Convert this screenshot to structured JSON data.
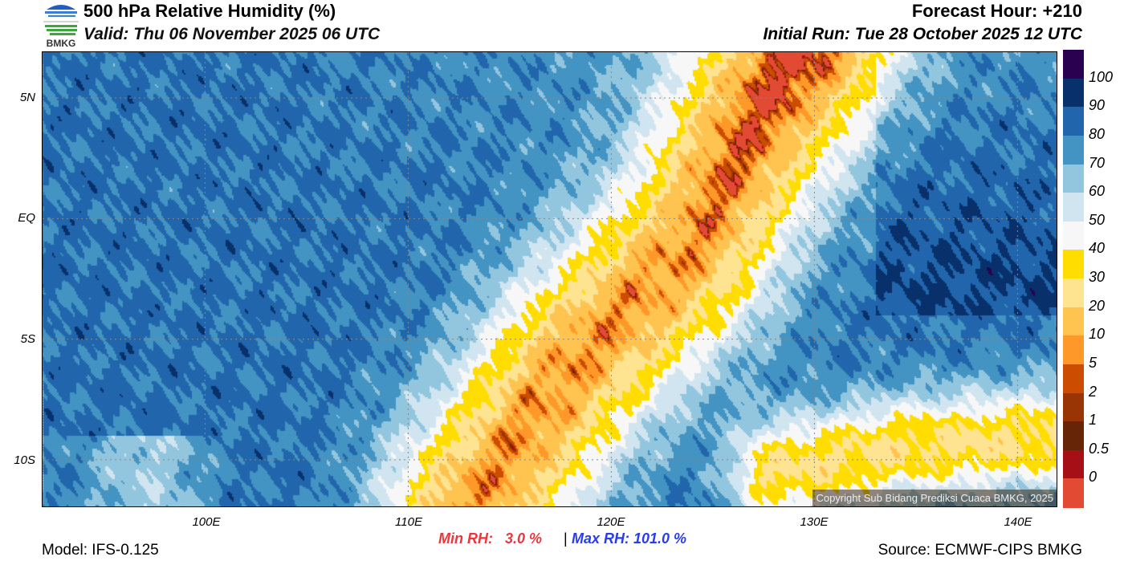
{
  "header": {
    "title": "500 hPa Relative Humidity (%)",
    "valid": "Valid: Thu 06 November 2025 06 UTC",
    "forecast_hour": "Forecast Hour: +210",
    "initial_run": "Initial Run: Tue 28 October 2025 12 UTC",
    "logo_text": "BMKG"
  },
  "map": {
    "lat_ticks": [
      "5N",
      "EQ",
      "5S",
      "10S"
    ],
    "lon_ticks": [
      "100E",
      "110E",
      "120E",
      "130E",
      "140E"
    ],
    "copyright": "Copyright Sub Bidang Prediksi Cuaca BMKG, 2025",
    "extent": {
      "lon": [
        92,
        142
      ],
      "lat": [
        -12,
        6.9
      ]
    }
  },
  "colorbar": {
    "labels": [
      "100",
      "90",
      "80",
      "70",
      "60",
      "50",
      "40",
      "30",
      "20",
      "10",
      "5",
      "2",
      "1",
      "0.5",
      "0"
    ],
    "colors": [
      "#2a0050",
      "#08306b",
      "#2166ac",
      "#4393c3",
      "#92c5de",
      "#d1e5f0",
      "#f7f7f7",
      "#ffdd00",
      "#fee391",
      "#fec44f",
      "#fe9929",
      "#cc4c02",
      "#993404",
      "#662506",
      "#a50f15",
      "#e34a33"
    ]
  },
  "footer": {
    "min_rh": "Min RH:   3.0 %",
    "separator": "|",
    "max_rh": "Max RH: 101.0 %",
    "model": "Model: IFS-0.125",
    "source": "Source: ECMWF-CIPS BMKG"
  }
}
